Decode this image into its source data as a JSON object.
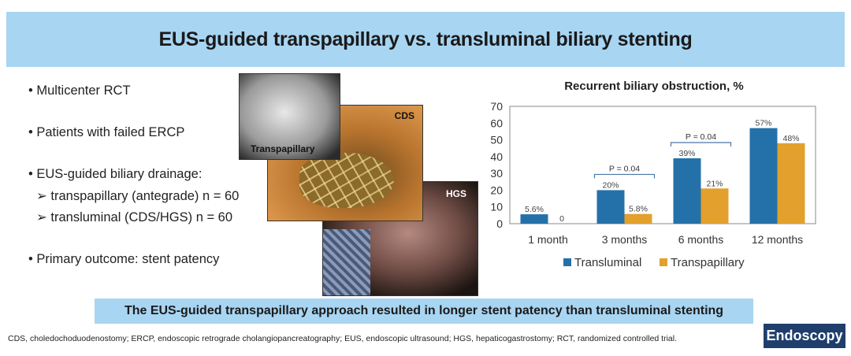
{
  "title": "EUS-guided transpapillary vs. transluminal biliary stenting",
  "bullets": [
    "• Multicenter RCT",
    "• Patients with failed ERCP",
    "• EUS-guided biliary drainage:",
    "➢ transpapillary (antegrade) n = 60",
    "➢ transluminal (CDS/HGS) n = 60",
    "•  Primary outcome: stent patency"
  ],
  "images": {
    "transpapillary": "Transpapillary",
    "cds": "CDS",
    "hgs": "HGS"
  },
  "conclusion": "The EUS-guided transpapillary approach resulted in longer stent patency than transluminal stenting",
  "footnote": "CDS, choledochoduodenostomy; ERCP, endoscopic retrograde cholangiopancreatography; EUS, endoscopic ultrasound; HGS, hepaticogastrostomy; RCT, randomized controlled trial.",
  "logo": "Endoscopy",
  "chart_data": {
    "type": "bar",
    "title": "Recurrent biliary obstruction, %",
    "categories": [
      "1 month",
      "3 months",
      "6 months",
      "12 months"
    ],
    "series": [
      {
        "name": "Transluminal",
        "color": "#2471aa",
        "values": [
          5.6,
          20,
          39,
          57
        ],
        "labels": [
          "5.6%",
          "20%",
          "39%",
          "57%"
        ]
      },
      {
        "name": "Transpapillary",
        "color": "#e3a02c",
        "values": [
          0,
          5.8,
          21,
          48
        ],
        "labels": [
          "0",
          "5.8%",
          "21%",
          "48%"
        ]
      }
    ],
    "ylim": [
      0,
      70
    ],
    "yticks": [
      0,
      10,
      20,
      30,
      40,
      50,
      60,
      70
    ],
    "annotations": [
      {
        "category": 1,
        "text": "P = 0.04"
      },
      {
        "category": 2,
        "text": "P = 0.04"
      }
    ],
    "legend": "bottom"
  }
}
